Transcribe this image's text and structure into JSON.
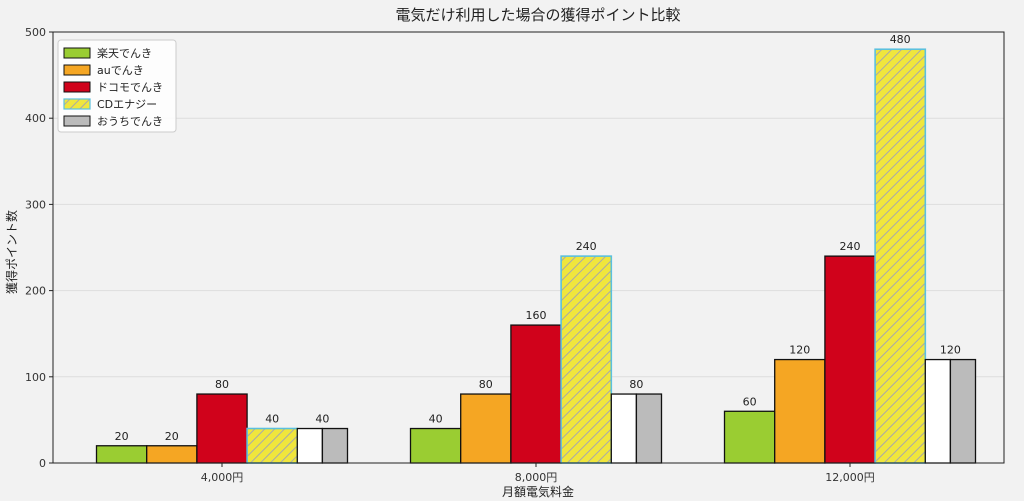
{
  "chart_data": {
    "type": "bar",
    "title": "電気だけ利用した場合の獲得ポイント比較",
    "xlabel": "月額電気料金",
    "ylabel": "獲得ポイント数",
    "categories": [
      "4,000円",
      "8,000円",
      "12,000円"
    ],
    "ylim": [
      0,
      500
    ],
    "yticks": [
      0,
      100,
      200,
      300,
      400,
      500
    ],
    "grid": true,
    "legend_position": "top-left",
    "series": [
      {
        "name": "楽天でんき",
        "values": [
          20,
          40,
          60
        ],
        "color": "#9acd32",
        "pattern": "solid"
      },
      {
        "name": "auでんき",
        "values": [
          20,
          80,
          120
        ],
        "color": "#f5a623",
        "pattern": "solid"
      },
      {
        "name": "ドコモでんき",
        "values": [
          80,
          160,
          240
        ],
        "color": "#d0021b",
        "pattern": "solid"
      },
      {
        "name": "CDエナジー",
        "values": [
          40,
          240,
          480
        ],
        "color": "#f0e63c",
        "pattern": "hatched",
        "edge_color": "#5bc0de"
      },
      {
        "name": "おうちでんき",
        "values": [
          40,
          80,
          120
        ],
        "color": "#bbbbbb",
        "pattern": "split-white"
      }
    ]
  }
}
